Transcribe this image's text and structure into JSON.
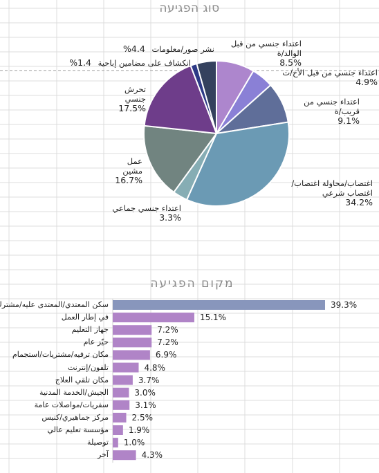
{
  "colors": {
    "grid": "#dcdcdc",
    "dashed": "#9a9a9a",
    "bar": "#b084c7",
    "bar_first": "#8896bc",
    "title": "#8a8a8a"
  },
  "chart_data": [
    {
      "type": "pie",
      "title": "סוג הפגיעה",
      "slices": [
        {
          "label": "اعتداء جنسي من قبل الوالد/ة",
          "value": 8.5,
          "value_label": "8.5%",
          "color": "#ad86cd"
        },
        {
          "label": "اعتداء جنسي من قبل الأخ/ت",
          "value": 4.9,
          "value_label": "4.9%",
          "color": "#8a80d6"
        },
        {
          "label": "اعتداء جنسي من قريب/ة",
          "value": 9.1,
          "value_label": "9.1%",
          "color": "#5f6e99"
        },
        {
          "label": "اغتصاب/محاولة اغتصاب/اغتصاب شرعي",
          "value": 34.2,
          "value_label": "34.2%",
          "color": "#6b9ab4"
        },
        {
          "label": "اعتداء جنسي جماعي",
          "value": 3.3,
          "value_label": "3.3%",
          "color": "#86adb4"
        },
        {
          "label": "عمل مشين",
          "value": 16.7,
          "value_label": "16.7%",
          "color": "#718480"
        },
        {
          "label": "تحرش جنسي",
          "value": 17.5,
          "value_label": "17.5%",
          "color": "#6e3d8a"
        },
        {
          "label": "انكشاف على مضامين إباحية",
          "value": 1.4,
          "value_label": "1.4%",
          "color": "#2d3a86"
        },
        {
          "label": "نشر صور/معلومات",
          "value": 4.4,
          "value_label": "4.4%",
          "color": "#34415e"
        }
      ]
    },
    {
      "type": "bar",
      "orientation": "horizontal",
      "title": "מקום הפגיעה",
      "xlim": [
        0,
        39.3
      ],
      "categories": [
        "سكن المعتدي/المعتدى عليه/مشترك",
        "في إطار العمل",
        "جهاز التعليم",
        "حيّز عام",
        "مكان ترفيه/مشتريات/استجمام",
        "تلفون/إنترنت",
        "مكان تلقي العلاج",
        "الجيش/الخدمة المدنية",
        "سفريات/مواصلات عامة",
        "مركز جماهيري/كنيس",
        "مؤسسة تعليم عالي",
        "توصيلة",
        "آخر"
      ],
      "values": [
        39.3,
        15.1,
        7.2,
        7.2,
        6.9,
        4.8,
        3.7,
        3.0,
        3.1,
        2.5,
        1.9,
        1.0,
        4.3
      ],
      "value_labels": [
        "39.3%",
        "15.1%",
        "7.2%",
        "7.2%",
        "6.9%",
        "4.8%",
        "3.7%",
        "3.0%",
        "3.1%",
        "2.5%",
        "1.9%",
        "1.0%",
        "4.3%"
      ]
    }
  ]
}
